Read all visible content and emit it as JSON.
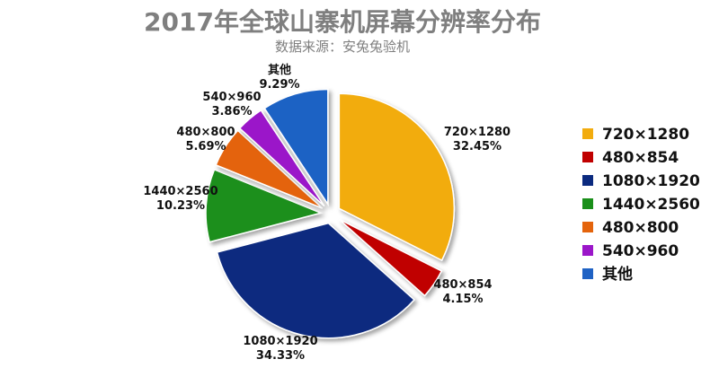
{
  "chart_data": {
    "type": "pie",
    "title": "2017年全球山寨机屏幕分辨率分布",
    "subtitle": "数据来源：安兔兔验机",
    "legend_position": "right",
    "exploded": true,
    "slices": [
      {
        "label": "720×1280",
        "value": 32.45,
        "display": "32.45%",
        "color": "#f2ac0e"
      },
      {
        "label": "480×854",
        "value": 4.15,
        "display": "4.15%",
        "color": "#c00000"
      },
      {
        "label": "1080×1920",
        "value": 34.33,
        "display": "34.33%",
        "color": "#0b2a7f"
      },
      {
        "label": "1440×2560",
        "value": 10.23,
        "display": "10.23%",
        "color": "#1a8f1a"
      },
      {
        "label": "480×800",
        "value": 5.69,
        "display": "5.69%",
        "color": "#e4640c"
      },
      {
        "label": "540×960",
        "value": 3.86,
        "display": "3.86%",
        "color": "#9b16c9"
      },
      {
        "label": "其他",
        "value": 9.29,
        "display": "9.29%",
        "color": "#1f62c4"
      }
    ]
  }
}
